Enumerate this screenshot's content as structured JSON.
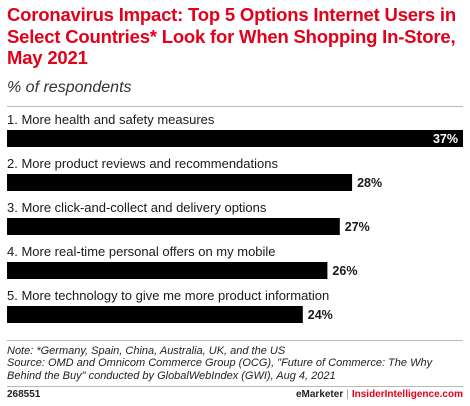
{
  "header": {
    "title": "Coronavirus Impact: Top 5 Options Internet Users in Select Countries* Look for When Shopping In-Store, May 2021",
    "subtitle": "% of respondents"
  },
  "chart_data": {
    "type": "bar",
    "orientation": "horizontal",
    "categories": [
      "1. More health and safety measures",
      "2. More product reviews and recommendations",
      "3. More click-and-collect and delivery options",
      "4. More real-time personal offers on my mobile",
      "5. More technology to give me more product information"
    ],
    "values": [
      37,
      28,
      27,
      26,
      24
    ],
    "value_labels": [
      "37%",
      "28%",
      "27%",
      "26%",
      "24%"
    ],
    "unit": "%",
    "xlim": [
      0,
      37
    ],
    "grid": false,
    "legend": "none",
    "bar_color": "#000000"
  },
  "footer": {
    "note": "Note: *Germany, Spain, China, Australia, UK, and the US",
    "source": "Source: OMD and Omnicom Commerce Group (OCG), \"Future of Commerce: The Why Behind the Buy\" conducted by GlobalWebIndex (GWI), Aug 4, 2021",
    "chart_id": "268551",
    "brand_left": "eMarketer",
    "separator": "|",
    "brand_right": "InsiderIntelligence.com"
  },
  "colors": {
    "title": "#e2001a",
    "bars": "#000000",
    "inside_label": "#ffffff",
    "brand_accent": "#e2001a"
  }
}
